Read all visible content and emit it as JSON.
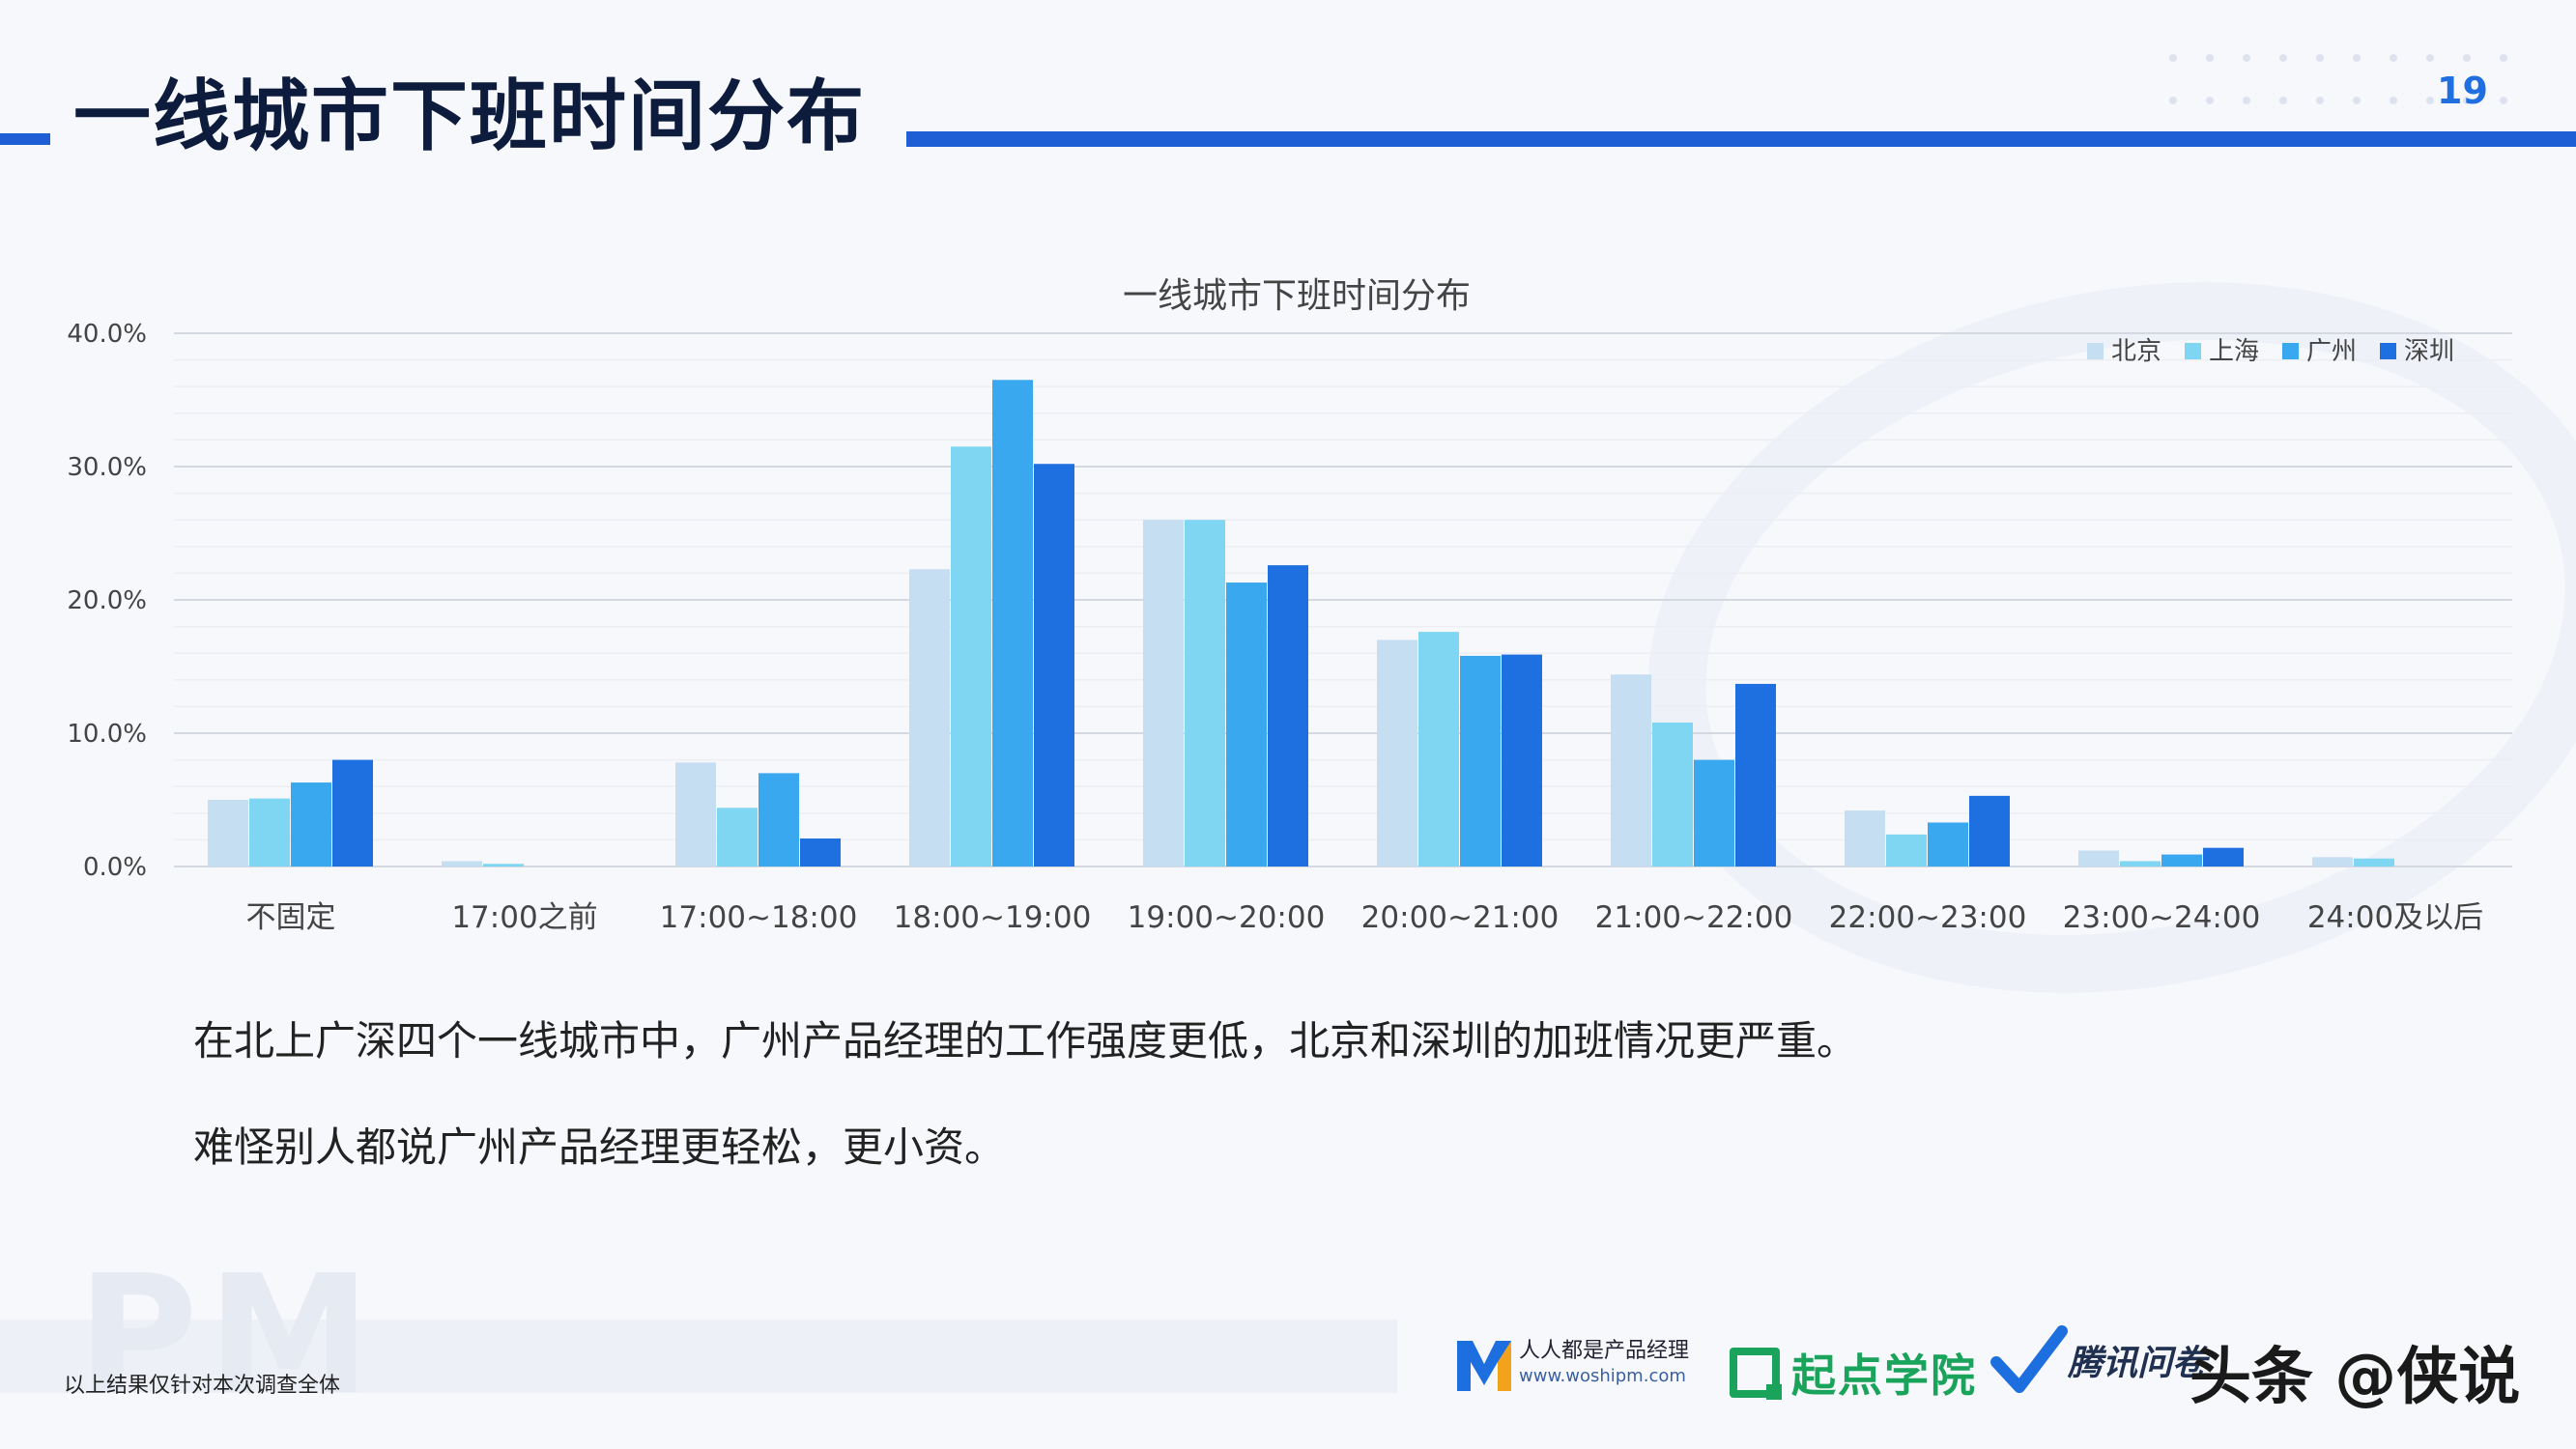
{
  "page": {
    "title": "一线城市下班时间分布",
    "page_number": "19",
    "accent_color": "#1f5fd6"
  },
  "notes": {
    "line1": "在北上广深四个一线城市中，广州产品经理的工作强度更低，北京和深圳的加班情况更严重。",
    "line2": "难怪别人都说广州产品经理更轻松，更小资。"
  },
  "footer": {
    "footnote": "以上结果仅针对本次调查全体",
    "watermark": "PM",
    "logos": {
      "renren_name": "人人都是产品经理",
      "renren_url": "www.woshipm.com",
      "qidian": "起点学院",
      "tencent": "腾讯问卷",
      "toutiao": "头条 @侠说"
    }
  },
  "chart_data": {
    "type": "bar",
    "title": "一线城市下班时间分布",
    "categories": [
      "不固定",
      "17:00之前",
      "17:00~18:00",
      "18:00~19:00",
      "19:00~20:00",
      "20:00~21:00",
      "21:00~22:00",
      "22:00~23:00",
      "23:00~24:00",
      "24:00及以后"
    ],
    "series": [
      {
        "name": "北京",
        "color": "#c5def2",
        "values": [
          5.0,
          0.4,
          7.8,
          22.3,
          26.0,
          17.0,
          14.4,
          4.2,
          1.2,
          0.7
        ]
      },
      {
        "name": "上海",
        "color": "#7fd6f2",
        "values": [
          5.1,
          0.2,
          4.4,
          31.5,
          26.0,
          17.6,
          10.8,
          2.4,
          0.4,
          0.6
        ]
      },
      {
        "name": "广州",
        "color": "#3aa8ee",
        "values": [
          6.3,
          0.0,
          7.0,
          36.5,
          21.3,
          15.8,
          8.0,
          3.3,
          0.9,
          0.0
        ]
      },
      {
        "name": "深圳",
        "color": "#1e6fe0",
        "values": [
          8.0,
          0.0,
          2.1,
          30.2,
          22.6,
          15.9,
          13.7,
          5.3,
          1.4,
          0.0
        ]
      }
    ],
    "yticks": [
      "0.0%",
      "10.0%",
      "20.0%",
      "30.0%",
      "40.0%"
    ],
    "ylim": [
      0,
      40
    ],
    "xlabel": "",
    "ylabel": "",
    "grid": true,
    "legend": "top-right"
  }
}
